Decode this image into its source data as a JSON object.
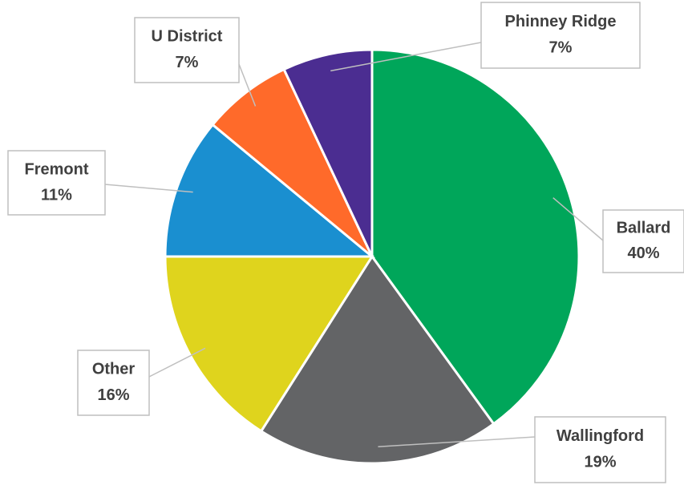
{
  "chart_data": {
    "type": "pie",
    "categories": [
      "Ballard",
      "Wallingford",
      "Other",
      "Fremont",
      "U District",
      "Phinney Ridge"
    ],
    "values": [
      40,
      19,
      16,
      11,
      7,
      7
    ],
    "value_labels": [
      "40%",
      "19%",
      "16%",
      "11%",
      "7%",
      "7%"
    ],
    "colors": [
      "#00a65a",
      "#636466",
      "#dfd41d",
      "#1a8fd0",
      "#ff6a2a",
      "#4b2d91"
    ]
  }
}
